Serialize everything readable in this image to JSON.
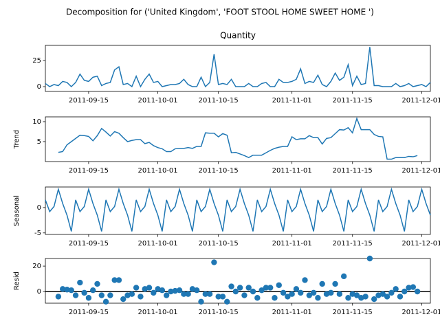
{
  "chart_data": {
    "type": "line",
    "title": "Decomposition for ('United Kingdom', 'FOOT STOOL HOME SWEET HOME ')",
    "color": "#1f77b4",
    "x": [
      "2011-09-05",
      "2011-09-06",
      "2011-09-07",
      "2011-09-08",
      "2011-09-09",
      "2011-09-10",
      "2011-09-11",
      "2011-09-12",
      "2011-09-13",
      "2011-09-14",
      "2011-09-15",
      "2011-09-16",
      "2011-09-17",
      "2011-09-18",
      "2011-09-19",
      "2011-09-20",
      "2011-09-21",
      "2011-09-22",
      "2011-09-23",
      "2011-09-24",
      "2011-09-25",
      "2011-09-26",
      "2011-09-27",
      "2011-09-28",
      "2011-09-29",
      "2011-09-30",
      "2011-10-01",
      "2011-10-02",
      "2011-10-03",
      "2011-10-04",
      "2011-10-05",
      "2011-10-06",
      "2011-10-07",
      "2011-10-08",
      "2011-10-09",
      "2011-10-10",
      "2011-10-11",
      "2011-10-12",
      "2011-10-13",
      "2011-10-14",
      "2011-10-15",
      "2011-10-16",
      "2011-10-17",
      "2011-10-18",
      "2011-10-19",
      "2011-10-20",
      "2011-10-21",
      "2011-10-22",
      "2011-10-23",
      "2011-10-24",
      "2011-10-25",
      "2011-10-26",
      "2011-10-27",
      "2011-10-28",
      "2011-10-29",
      "2011-10-30",
      "2011-10-31",
      "2011-11-01",
      "2011-11-02",
      "2011-11-03",
      "2011-11-04",
      "2011-11-05",
      "2011-11-06",
      "2011-11-07",
      "2011-11-08",
      "2011-11-09",
      "2011-11-10",
      "2011-11-11",
      "2011-11-12",
      "2011-11-13",
      "2011-11-14",
      "2011-11-15",
      "2011-11-16",
      "2011-11-17",
      "2011-11-18",
      "2011-11-19",
      "2011-11-20",
      "2011-11-21",
      "2011-11-22",
      "2011-11-23",
      "2011-11-24",
      "2011-11-25",
      "2011-11-26",
      "2011-11-27",
      "2011-11-28",
      "2011-11-29",
      "2011-11-30",
      "2011-12-01",
      "2011-12-02",
      "2011-12-03"
    ],
    "xlim": [
      "2011-09-05",
      "2011-12-03"
    ],
    "xticks": [
      "2011-09-15",
      "2011-10-01",
      "2011-10-15",
      "2011-11-01",
      "2011-11-15",
      "2011-12-01"
    ],
    "panels": [
      {
        "type": "line",
        "title": "Quantity",
        "ylim": [
          -4.6,
          39.5
        ],
        "yticks": [
          0,
          25
        ],
        "values": [
          3,
          0,
          2,
          1,
          5,
          4,
          0,
          4,
          12,
          6,
          5,
          9,
          10,
          1,
          3,
          4,
          16,
          19,
          2,
          3,
          0,
          10,
          0,
          7,
          12,
          4,
          5,
          0,
          1,
          2,
          2,
          3,
          7,
          2,
          0,
          0,
          9,
          0,
          4,
          31,
          2,
          3,
          2,
          7,
          0,
          0,
          0,
          3,
          0,
          0,
          3,
          4,
          0,
          0,
          7,
          4,
          4,
          5,
          7,
          17,
          3,
          5,
          4,
          11,
          2,
          0,
          5,
          13,
          6,
          9,
          21,
          1,
          10,
          2,
          3,
          38,
          1,
          1,
          0,
          0,
          0,
          3,
          0,
          1,
          3,
          0,
          1,
          2,
          0,
          4
        ]
      },
      {
        "type": "line",
        "ylabel": "Trend",
        "ylim": [
          0.0,
          11.2
        ],
        "yticks": [
          5,
          10
        ],
        "values": [
          null,
          null,
          null,
          2.3,
          2.5,
          4.2,
          5.0,
          5.8,
          6.6,
          6.5,
          6.3,
          5.2,
          6.5,
          8.3,
          7.4,
          6.4,
          7.5,
          7.1,
          6.0,
          5.0,
          5.3,
          5.5,
          5.5,
          4.5,
          4.8,
          4.0,
          3.5,
          3.2,
          2.5,
          2.5,
          3.2,
          3.3,
          3.3,
          3.5,
          3.3,
          3.8,
          3.8,
          7.2,
          7.1,
          7.1,
          6.2,
          7.0,
          6.6,
          2.2,
          2.3,
          1.9,
          1.5,
          1.0,
          1.6,
          1.6,
          1.6,
          2.2,
          2.8,
          3.3,
          3.6,
          3.8,
          3.8,
          6.2,
          5.5,
          5.7,
          5.7,
          6.5,
          6.0,
          6.0,
          4.4,
          5.8,
          6.0,
          7.0,
          8.0,
          7.9,
          8.5,
          7.2,
          10.8,
          8.0,
          8.0,
          8.0,
          6.8,
          6.3,
          6.2,
          0.6,
          0.6,
          1.0,
          1.0,
          1.0,
          1.3,
          1.2,
          1.5,
          null,
          null,
          null
        ]
      },
      {
        "type": "line",
        "ylabel": "Seasonal",
        "ylim": [
          -5.3,
          4.05
        ],
        "yticks": [
          -5,
          0
        ],
        "values": [
          1.5,
          -0.8,
          0.2,
          3.6,
          0.8,
          -1.5,
          -4.7,
          1.5,
          -0.8,
          0.2,
          3.6,
          0.8,
          -1.5,
          -4.7,
          1.5,
          -0.8,
          0.2,
          3.6,
          0.8,
          -1.5,
          -4.7,
          1.5,
          -0.8,
          0.2,
          3.6,
          0.8,
          -1.5,
          -4.7,
          1.5,
          -0.8,
          0.2,
          3.6,
          0.8,
          -1.5,
          -4.7,
          1.5,
          -0.8,
          0.2,
          3.6,
          0.8,
          -1.5,
          -4.7,
          1.5,
          -0.8,
          0.2,
          3.6,
          0.8,
          -1.5,
          -4.7,
          1.5,
          -0.8,
          0.2,
          3.6,
          0.8,
          -1.5,
          -4.7,
          1.5,
          -0.8,
          0.2,
          3.6,
          0.8,
          -1.5,
          -4.7,
          1.5,
          -0.8,
          0.2,
          3.6,
          0.8,
          -1.5,
          -4.7,
          1.5,
          -0.8,
          0.2,
          3.6,
          0.8,
          -1.5,
          -4.7,
          1.5,
          -0.8,
          0.2,
          3.6,
          0.8,
          -1.5,
          -4.7,
          1.5,
          -0.8,
          0.2,
          3.6,
          0.8,
          -1.5
        ]
      },
      {
        "type": "scatter",
        "ylabel": "Resid",
        "ylim": [
          -9.2,
          26
        ],
        "yticks": [
          0,
          20
        ],
        "hline": 0,
        "values": [
          null,
          null,
          null,
          -4,
          2,
          1.5,
          1,
          -3,
          7,
          -1,
          -5,
          1,
          6,
          -3,
          -8,
          -3,
          9,
          9,
          -6,
          -3,
          -2,
          3,
          -4,
          2,
          3,
          -1,
          2,
          1,
          -3,
          0,
          0.5,
          1,
          -2,
          -2,
          2,
          1,
          -8,
          -2,
          -2,
          23,
          -4,
          -4,
          -8,
          4,
          0,
          3,
          -3,
          3,
          0,
          -5,
          1,
          3,
          3,
          -5,
          5,
          -1,
          -4,
          -2,
          2,
          -1,
          9,
          -3,
          -1,
          -5,
          6,
          -2,
          -1,
          6,
          -2,
          12,
          -5,
          -2,
          -3,
          -5,
          -4,
          26,
          -6,
          -3,
          -2,
          -4,
          -1,
          2,
          -4,
          0,
          3,
          3.5,
          0,
          null,
          null,
          null
        ]
      }
    ]
  }
}
